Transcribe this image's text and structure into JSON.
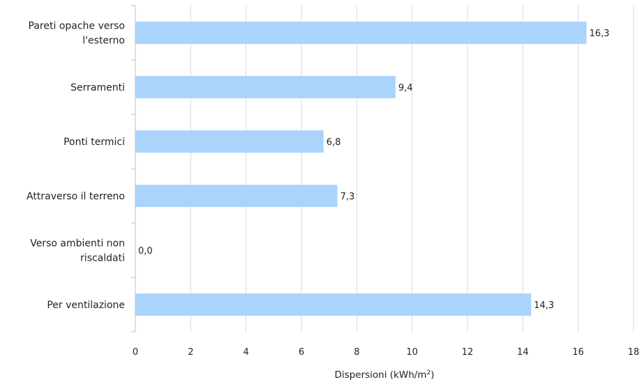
{
  "chart_data": {
    "type": "bar",
    "orientation": "horizontal",
    "categories": [
      "Pareti opache verso l'esterno",
      "Serramenti",
      "Ponti termici",
      "Attraverso il terreno",
      "Verso ambienti non riscaldati",
      "Per ventilazione"
    ],
    "category_lines": [
      [
        "Pareti opache verso",
        "l'esterno"
      ],
      [
        "Serramenti"
      ],
      [
        "Ponti termici"
      ],
      [
        "Attraverso il terreno"
      ],
      [
        "Verso ambienti non",
        "riscaldati"
      ],
      [
        "Per ventilazione"
      ]
    ],
    "values": [
      16.3,
      9.4,
      6.8,
      7.3,
      0.0,
      14.3
    ],
    "value_labels": [
      "16,3",
      "9,4",
      "6,8",
      "7,3",
      "0,0",
      "14,3"
    ],
    "xlim": [
      0,
      18
    ],
    "xticks": [
      0,
      2,
      4,
      6,
      8,
      10,
      12,
      14,
      16,
      18
    ],
    "xlabel": "Dispersioni (kWh/m",
    "xlabel_superscript": "2",
    "xlabel_suffix": ")",
    "ylabel": "",
    "title": "",
    "grid": true,
    "bar_color": "#aad4fb",
    "grid_color": "#d9d9d9"
  }
}
